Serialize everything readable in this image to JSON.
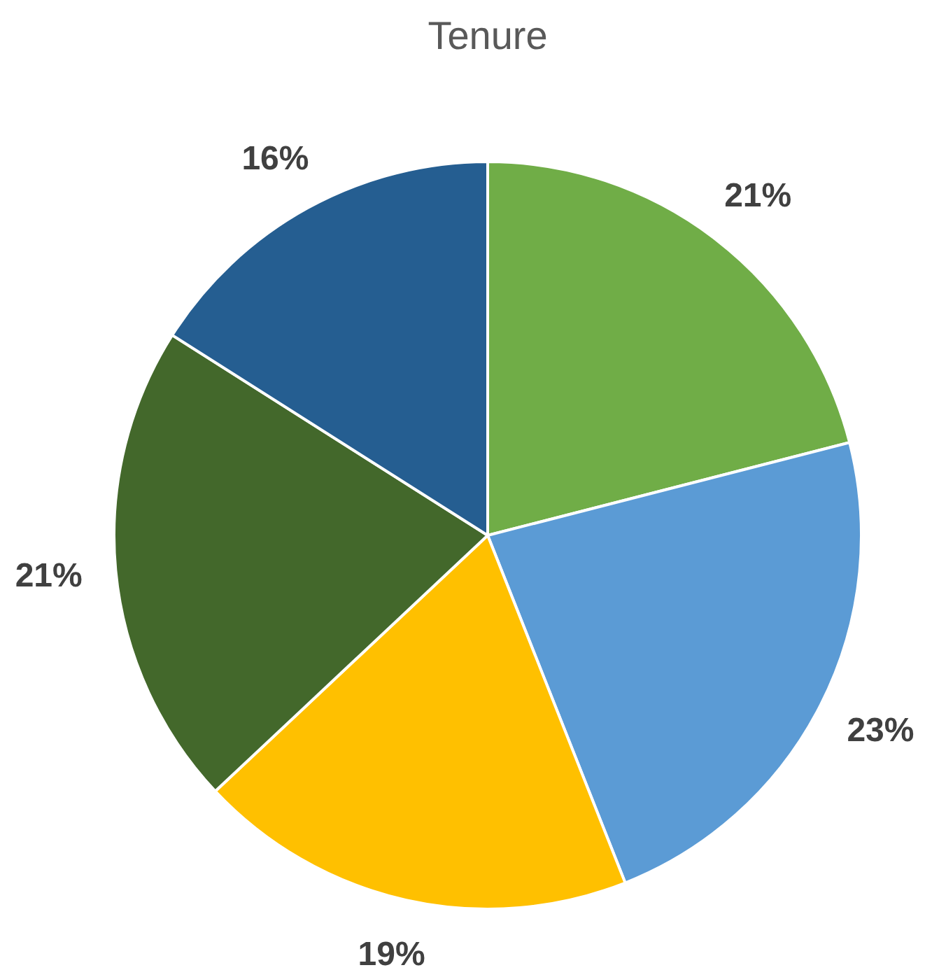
{
  "chart_data": {
    "type": "pie",
    "title": "Tenure",
    "categories": [
      null,
      null,
      null,
      null,
      null
    ],
    "values": [
      21,
      23,
      19,
      21,
      16
    ],
    "colors": [
      "#70ad47",
      "#5b9bd5",
      "#ffc000",
      "#43682b",
      "#255e91"
    ],
    "value_labels": [
      "21%",
      "23%",
      "19%",
      "21%",
      "16%"
    ]
  }
}
